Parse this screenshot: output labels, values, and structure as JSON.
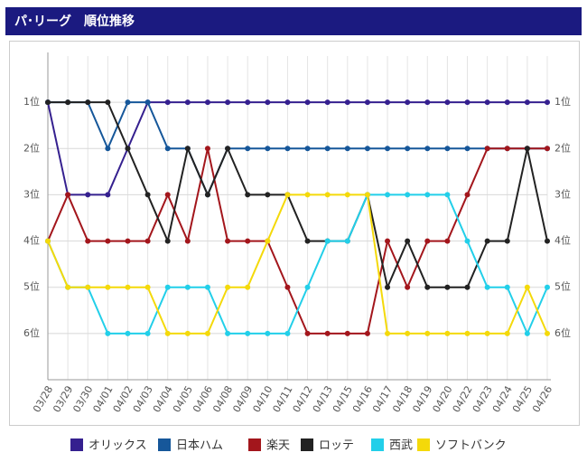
{
  "chart_data": {
    "type": "line",
    "title": "パ･リーグ　順位推移",
    "categories": [
      "03/28",
      "03/29",
      "03/30",
      "04/01",
      "04/02",
      "04/03",
      "04/04",
      "04/05",
      "04/06",
      "04/08",
      "04/09",
      "04/10",
      "04/11",
      "04/12",
      "04/13",
      "04/15",
      "04/16",
      "04/17",
      "04/18",
      "04/19",
      "04/20",
      "04/22",
      "04/23",
      "04/24",
      "04/25",
      "04/26"
    ],
    "series": [
      {
        "name": "オリックス",
        "color": "#35208f",
        "values": [
          1,
          3,
          3,
          3,
          2,
          1,
          1,
          1,
          1,
          1,
          1,
          1,
          1,
          1,
          1,
          1,
          1,
          1,
          1,
          1,
          1,
          1,
          1,
          1,
          1,
          1
        ]
      },
      {
        "name": "日本ハム",
        "color": "#16579a",
        "values": [
          1,
          1,
          1,
          2,
          1,
          1,
          2,
          2,
          3,
          2,
          2,
          2,
          2,
          2,
          2,
          2,
          2,
          2,
          2,
          2,
          2,
          2,
          2,
          2,
          2,
          2
        ]
      },
      {
        "name": "楽天",
        "color": "#a3161c",
        "values": [
          4,
          3,
          4,
          4,
          4,
          4,
          3,
          4,
          2,
          4,
          4,
          4,
          5,
          6,
          6,
          6,
          6,
          4,
          5,
          4,
          4,
          3,
          2,
          2,
          2,
          2
        ]
      },
      {
        "name": "ロッテ",
        "color": "#222222",
        "values": [
          1,
          1,
          1,
          1,
          2,
          3,
          4,
          2,
          3,
          2,
          3,
          3,
          3,
          4,
          4,
          4,
          3,
          5,
          4,
          5,
          5,
          5,
          4,
          4,
          2,
          4
        ]
      },
      {
        "name": "西武",
        "color": "#22cfe9",
        "values": [
          4,
          5,
          5,
          6,
          6,
          6,
          5,
          5,
          5,
          6,
          6,
          6,
          6,
          5,
          4,
          4,
          3,
          3,
          3,
          3,
          3,
          4,
          5,
          5,
          6,
          5
        ]
      },
      {
        "name": "ソフトバンク",
        "color": "#f4d90a",
        "values": [
          4,
          5,
          5,
          5,
          5,
          5,
          6,
          6,
          6,
          5,
          5,
          4,
          3,
          3,
          3,
          3,
          3,
          6,
          6,
          6,
          6,
          6,
          6,
          6,
          5,
          6
        ]
      }
    ],
    "ylim": [
      0,
      7
    ],
    "y_inverted": true,
    "yticks": [
      {
        "value": 1,
        "label": "1位"
      },
      {
        "value": 2,
        "label": "2位"
      },
      {
        "value": 3,
        "label": "3位"
      },
      {
        "value": 4,
        "label": "4位"
      },
      {
        "value": 5,
        "label": "5位"
      },
      {
        "value": 6,
        "label": "6位"
      }
    ],
    "grid": true
  }
}
